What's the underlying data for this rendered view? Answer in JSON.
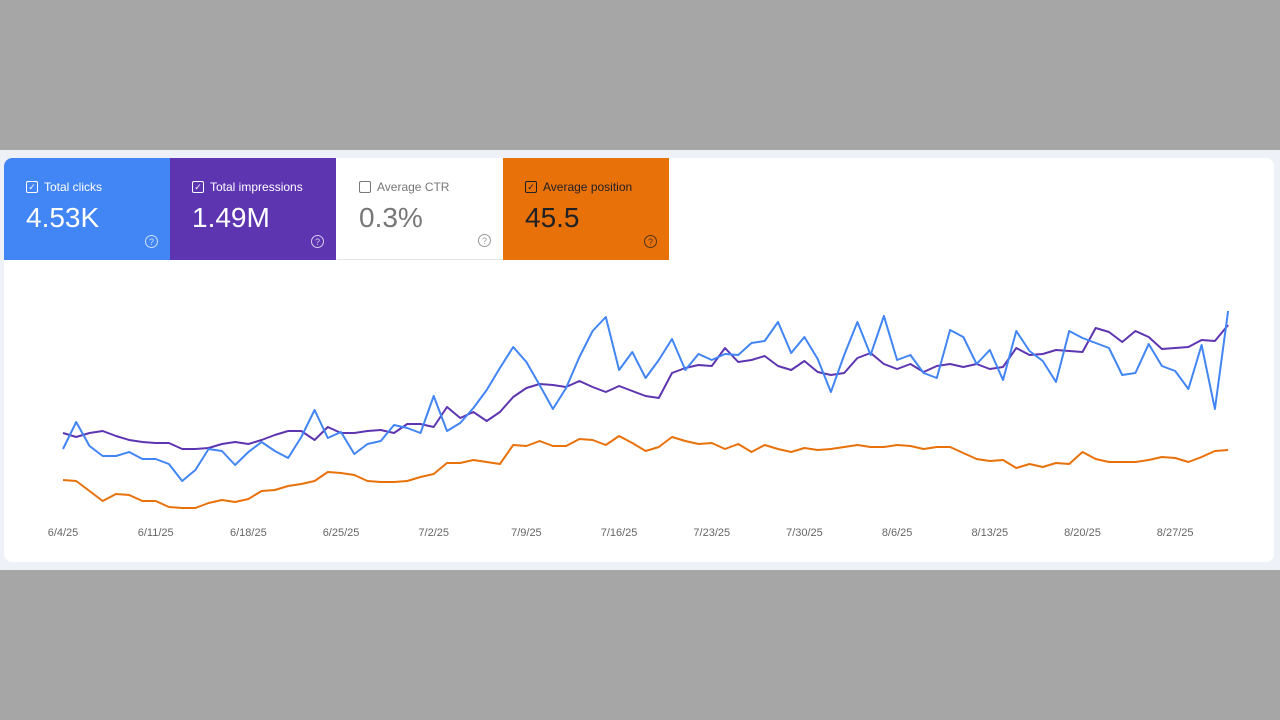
{
  "metrics": [
    {
      "label": "Total clicks",
      "value": "4.53K",
      "checked": true,
      "color": "#4285f4"
    },
    {
      "label": "Total impressions",
      "value": "1.49M",
      "checked": true,
      "color": "#5e35b1"
    },
    {
      "label": "Average CTR",
      "value": "0.3%",
      "checked": false,
      "color": "#ffffff"
    },
    {
      "label": "Average position",
      "value": "45.5",
      "checked": true,
      "color": "#e8710a"
    }
  ],
  "chart_data": {
    "type": "line",
    "title": "",
    "xlabel": "",
    "ylabel": "",
    "x_start": "6/4/25",
    "x_end": "8/31/25",
    "days": 89,
    "x_tick_labels": [
      "6/4/25",
      "6/11/25",
      "6/18/25",
      "6/25/25",
      "7/2/25",
      "7/9/25",
      "7/16/25",
      "7/23/25",
      "7/30/25",
      "8/6/25",
      "8/13/25",
      "8/20/25",
      "8/27/25"
    ],
    "ylim": [
      0,
      240
    ],
    "y_units": "relative (no y-axis shown)",
    "grid": false,
    "series": [
      {
        "name": "Total clicks",
        "color": "#4285f4",
        "values": [
          81,
          108,
          84,
          74,
          74,
          78,
          71,
          71,
          66,
          49,
          60,
          81,
          79,
          65,
          78,
          88,
          79,
          72,
          93,
          120,
          92,
          98,
          76,
          86,
          89,
          105,
          102,
          97,
          134,
          99,
          107,
          122,
          140,
          162,
          183,
          168,
          145,
          121,
          142,
          173,
          199,
          213,
          160,
          178,
          152,
          170,
          191,
          160,
          176,
          170,
          176,
          175,
          187,
          189,
          208,
          177,
          193,
          171,
          138,
          175,
          208,
          175,
          214,
          170,
          175,
          157,
          152,
          200,
          193,
          166,
          180,
          150,
          199,
          179,
          169,
          148,
          199,
          192,
          187,
          182,
          155,
          157,
          186,
          164,
          159,
          141,
          185,
          121,
          219
        ]
      },
      {
        "name": "Total impressions",
        "color": "#5e35b1",
        "values": [
          97,
          93,
          97,
          99,
          94,
          90,
          88,
          87,
          87,
          81,
          81,
          82,
          86,
          88,
          86,
          90,
          95,
          99,
          99,
          90,
          103,
          97,
          97,
          99,
          100,
          97,
          106,
          106,
          103,
          123,
          112,
          118,
          109,
          118,
          133,
          142,
          146,
          145,
          143,
          149,
          143,
          138,
          144,
          139,
          134,
          132,
          157,
          162,
          165,
          164,
          182,
          168,
          170,
          174,
          164,
          160,
          169,
          158,
          155,
          157,
          172,
          177,
          166,
          161,
          166,
          158,
          164,
          166,
          163,
          166,
          161,
          163,
          182,
          175,
          176,
          180,
          179,
          178,
          202,
          198,
          188,
          199,
          193,
          181,
          182,
          183,
          190,
          189,
          205
        ]
      },
      {
        "name": "Average position",
        "color": "#e8710a",
        "values": [
          50,
          49,
          39,
          29,
          36,
          35,
          29,
          29,
          23,
          22,
          22,
          27,
          30,
          28,
          31,
          39,
          40,
          44,
          46,
          49,
          58,
          57,
          55,
          49,
          48,
          48,
          49,
          53,
          56,
          67,
          67,
          70,
          68,
          66,
          85,
          84,
          89,
          84,
          84,
          91,
          90,
          85,
          94,
          87,
          79,
          83,
          93,
          89,
          86,
          87,
          81,
          86,
          78,
          85,
          81,
          78,
          82,
          80,
          81,
          83,
          85,
          83,
          83,
          85,
          84,
          81,
          83,
          83,
          77,
          71,
          69,
          70,
          62,
          66,
          63,
          67,
          66,
          78,
          71,
          68,
          68,
          68,
          70,
          73,
          72,
          68,
          73,
          79,
          80
        ]
      }
    ]
  }
}
